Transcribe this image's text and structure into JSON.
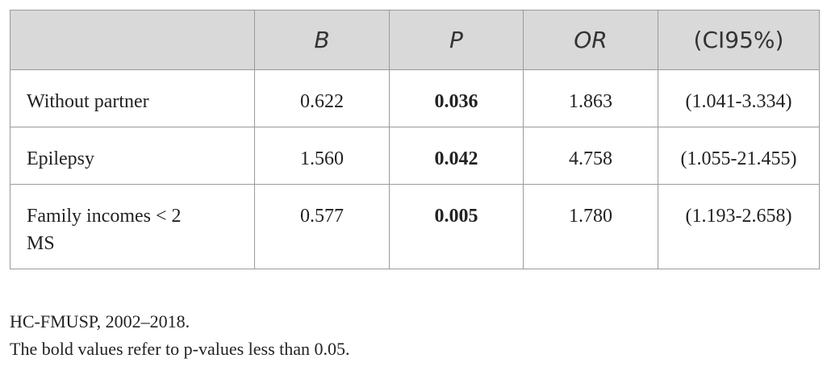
{
  "table": {
    "header": [
      "B",
      "P",
      "OR",
      "(CI95%)"
    ],
    "rows": [
      [
        "Without partner",
        "0.622",
        "0.036",
        "1.863",
        "(1.041-3.334)"
      ],
      [
        "Epilepsy",
        "1.560",
        "0.042",
        "4.758",
        "(1.055-21.455)"
      ],
      [
        "Family incomes < 2 MS",
        "0.577",
        "0.005",
        "1.780",
        "(1.193-2.658)"
      ]
    ]
  },
  "notes": [
    "HC-FMUSP, 2002–2018.",
    "The bold values refer to p-values less than 0.05."
  ]
}
